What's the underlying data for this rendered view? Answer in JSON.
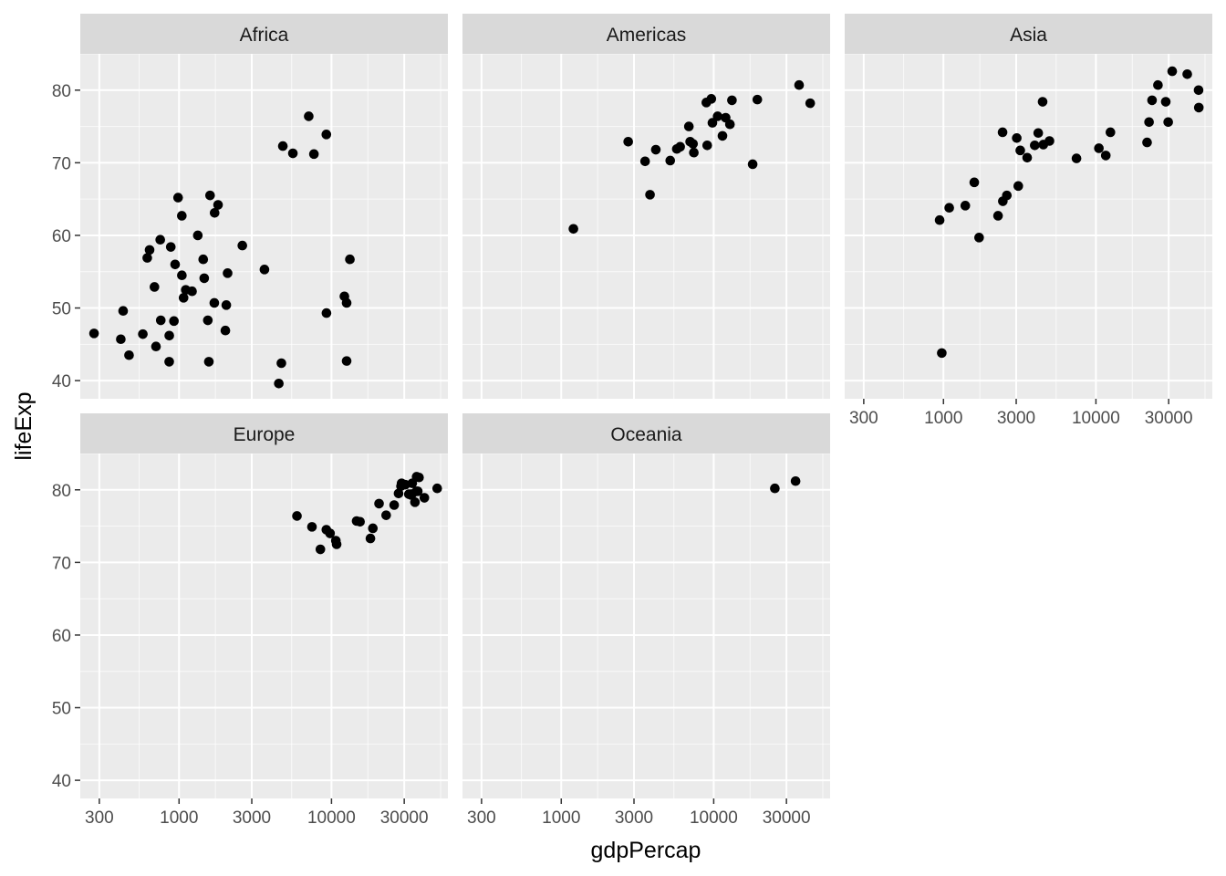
{
  "chart_data": {
    "type": "scatter",
    "xlabel": "gdpPercap",
    "ylabel": "lifeExp",
    "x_scale": "log10",
    "xlim": [
      225,
      58000
    ],
    "ylim": [
      37.5,
      85
    ],
    "x_ticks": [
      300,
      1000,
      3000,
      10000,
      30000
    ],
    "x_tick_labels": [
      "300",
      "1000",
      "3000",
      "10000",
      "30000"
    ],
    "y_ticks": [
      40,
      50,
      60,
      70,
      80
    ],
    "y_tick_labels": [
      "40",
      "50",
      "60",
      "70",
      "80"
    ],
    "grid": true,
    "panel_background": "#ebebeb",
    "strip_background": "#d9d9d9",
    "point_color": "#000000",
    "facets": [
      {
        "label": "Africa",
        "points": [
          [
            4797,
            72.3
          ],
          [
            12570,
            42.7
          ],
          [
            1441,
            56.7
          ],
          [
            12570,
            50.7
          ],
          [
            1217,
            52.3
          ],
          [
            430,
            49.6
          ],
          [
            2042,
            50.4
          ],
          [
            706,
            44.7
          ],
          [
            1704,
            50.7
          ],
          [
            986,
            65.2
          ],
          [
            277,
            46.5
          ],
          [
            3633,
            55.3
          ],
          [
            1545,
            48.3
          ],
          [
            2082,
            54.8
          ],
          [
            5581,
            71.3
          ],
          [
            12154,
            51.6
          ],
          [
            641,
            58.0
          ],
          [
            690,
            52.9
          ],
          [
            13206,
            56.7
          ],
          [
            753,
            59.4
          ],
          [
            1328,
            60.0
          ],
          [
            943,
            56.0
          ],
          [
            579,
            46.4
          ],
          [
            1463,
            54.1
          ],
          [
            1569,
            42.6
          ],
          [
            415,
            45.7
          ],
          [
            1071,
            51.4
          ],
          [
            9253,
            73.9
          ],
          [
            1044,
            54.5
          ],
          [
            759,
            48.3
          ],
          [
            1043,
            62.7
          ],
          [
            1803,
            64.2
          ],
          [
            7092,
            76.4
          ],
          [
            4692,
            42.4
          ],
          [
            619,
            56.9
          ],
          [
            2014,
            46.9
          ],
          [
            7670,
            71.2
          ],
          [
            863,
            46.2
          ],
          [
            1598,
            65.5
          ],
          [
            1712,
            63.1
          ],
          [
            862,
            42.6
          ],
          [
            926,
            48.2
          ],
          [
            9270,
            49.3
          ],
          [
            2602,
            58.6
          ],
          [
            4513,
            39.6
          ],
          [
            1107,
            52.5
          ],
          [
            883,
            58.4
          ],
          [
            470,
            43.5
          ]
        ]
      },
      {
        "label": "Americas",
        "points": [
          [
            12779,
            75.3
          ],
          [
            3822,
            65.6
          ],
          [
            9066,
            72.4
          ],
          [
            36319,
            80.7
          ],
          [
            13172,
            78.6
          ],
          [
            7007,
            72.9
          ],
          [
            9645,
            78.8
          ],
          [
            8948,
            78.3
          ],
          [
            6025,
            72.2
          ],
          [
            6873,
            75.0
          ],
          [
            5728,
            71.9
          ],
          [
            5186,
            70.3
          ],
          [
            1202,
            60.9
          ],
          [
            3548,
            70.2
          ],
          [
            7321,
            72.6
          ],
          [
            11978,
            76.2
          ],
          [
            2749,
            72.9
          ],
          [
            9809,
            75.5
          ],
          [
            4173,
            71.8
          ],
          [
            7409,
            71.4
          ],
          [
            19329,
            78.7
          ],
          [
            18009,
            69.8
          ],
          [
            42952,
            78.2
          ],
          [
            10611,
            76.4
          ],
          [
            11416,
            73.7
          ]
        ]
      },
      {
        "label": "Asia",
        "points": [
          [
            975,
            43.8
          ],
          [
            29796,
            75.6
          ],
          [
            1391,
            64.1
          ],
          [
            1713,
            59.7
          ],
          [
            4959,
            73.0
          ],
          [
            39725,
            82.2
          ],
          [
            2452,
            64.7
          ],
          [
            3541,
            70.7
          ],
          [
            11606,
            71.0
          ],
          [
            4471,
            78.4
          ],
          [
            25523,
            80.7
          ],
          [
            31656,
            82.6
          ],
          [
            4519,
            72.5
          ],
          [
            1593,
            67.3
          ],
          [
            23348,
            78.6
          ],
          [
            47307,
            77.6
          ],
          [
            10461,
            72.0
          ],
          [
            12452,
            74.2
          ],
          [
            3096,
            66.8
          ],
          [
            944,
            62.1
          ],
          [
            1091,
            63.8
          ],
          [
            22316,
            75.6
          ],
          [
            2605,
            65.5
          ],
          [
            3190,
            71.7
          ],
          [
            21655,
            72.8
          ],
          [
            47143,
            80.0
          ],
          [
            3970,
            72.4
          ],
          [
            4185,
            74.1
          ],
          [
            28718,
            78.4
          ],
          [
            7458,
            70.6
          ],
          [
            2442,
            74.2
          ],
          [
            3025,
            73.4
          ],
          [
            2281,
            62.7
          ]
        ]
      },
      {
        "label": "Europe",
        "points": [
          [
            5937,
            76.4
          ],
          [
            36126,
            79.8
          ],
          [
            33693,
            79.4
          ],
          [
            7446,
            74.9
          ],
          [
            10681,
            73.0
          ],
          [
            14619,
            75.7
          ],
          [
            22833,
            76.5
          ],
          [
            35278,
            78.3
          ],
          [
            33207,
            79.3
          ],
          [
            30470,
            80.7
          ],
          [
            32170,
            79.4
          ],
          [
            27538,
            79.5
          ],
          [
            18009,
            73.3
          ],
          [
            36181,
            81.8
          ],
          [
            40676,
            78.9
          ],
          [
            28570,
            80.5
          ],
          [
            9254,
            74.5
          ],
          [
            36798,
            79.8
          ],
          [
            49357,
            80.2
          ],
          [
            15390,
            75.6
          ],
          [
            20510,
            78.1
          ],
          [
            10808,
            72.5
          ],
          [
            9787,
            74.0
          ],
          [
            18678,
            74.7
          ],
          [
            25768,
            77.9
          ],
          [
            28822,
            80.9
          ],
          [
            33860,
            80.9
          ],
          [
            37506,
            81.7
          ],
          [
            8458,
            71.8
          ],
          [
            33203,
            79.4
          ]
        ]
      },
      {
        "label": "Oceania",
        "points": [
          [
            34435,
            81.2
          ],
          [
            25185,
            80.2
          ]
        ]
      }
    ]
  }
}
